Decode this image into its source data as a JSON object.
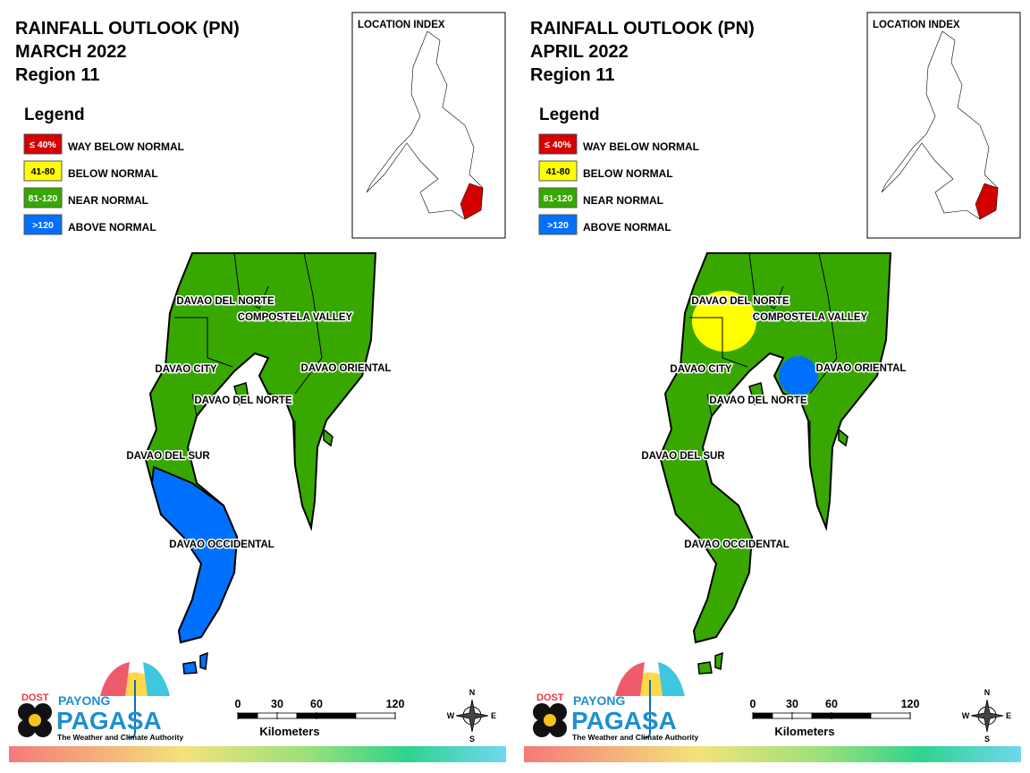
{
  "panels": [
    {
      "title": [
        "RAINFALL OUTLOOK (PN)",
        "MARCH 2022",
        "Region 11"
      ],
      "legend": {
        "title": "Legend",
        "items": [
          {
            "range": "≤ 40%",
            "label": "WAY BELOW NORMAL",
            "color": "#d40000"
          },
          {
            "range": "41-80",
            "label": "BELOW NORMAL",
            "color": "#ffff00"
          },
          {
            "range": "81-120",
            "label": "NEAR NORMAL",
            "color": "#38a800"
          },
          {
            "range": ">120",
            "label": "ABOVE NORMAL",
            "color": "#0070ff"
          }
        ]
      },
      "location_index": "LOCATION INDEX",
      "regions": [
        "DAVAO DEL NORTE",
        "COMPOSTELA VALLEY",
        "DAVAO CITY",
        "DAVAO ORIENTAL",
        "DAVAO DEL NORTE",
        "DAVAO DEL SUR",
        "DAVAO OCCIDENTAL"
      ],
      "scale": {
        "ticks": [
          0,
          30,
          60,
          120
        ],
        "unit": "Kilometers"
      },
      "compass": [
        "N",
        "E",
        "S",
        "W"
      ],
      "logo": {
        "agency": "DOST",
        "brand_top": "PAYONG",
        "brand": "PAGASA",
        "tagline": "The Weather and Climate Authority"
      }
    },
    {
      "title": [
        "RAINFALL OUTLOOK (PN)",
        "APRIL 2022",
        "Region 11"
      ],
      "legend": {
        "title": "Legend",
        "items": [
          {
            "range": "≤ 40%",
            "label": "WAY BELOW NORMAL",
            "color": "#d40000"
          },
          {
            "range": "41-80",
            "label": "BELOW NORMAL",
            "color": "#ffff00"
          },
          {
            "range": "81-120",
            "label": "NEAR NORMAL",
            "color": "#38a800"
          },
          {
            "range": ">120",
            "label": "ABOVE NORMAL",
            "color": "#0070ff"
          }
        ]
      },
      "location_index": "LOCATION INDEX",
      "regions": [
        "DAVAO DEL NORTE",
        "COMPOSTELA VALLEY",
        "DAVAO CITY",
        "DAVAO ORIENTAL",
        "DAVAO DEL NORTE",
        "DAVAO DEL SUR",
        "DAVAO OCCIDENTAL"
      ],
      "scale": {
        "ticks": [
          0,
          30,
          60,
          120
        ],
        "unit": "Kilometers"
      },
      "compass": [
        "N",
        "E",
        "S",
        "W"
      ],
      "logo": {
        "agency": "DOST",
        "brand_top": "PAYONG",
        "brand": "PAGASA",
        "tagline": "The Weather and Climate Authority"
      }
    }
  ]
}
